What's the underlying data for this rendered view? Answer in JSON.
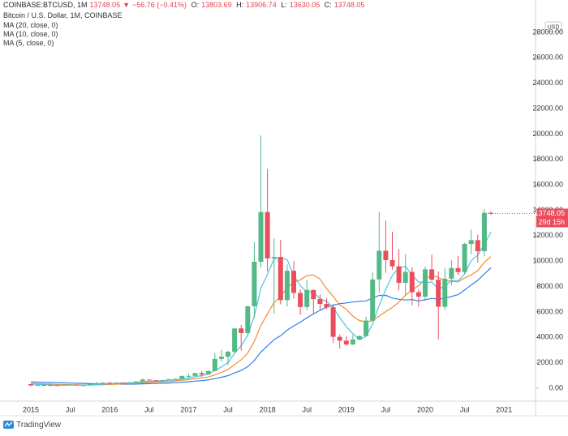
{
  "chart_data": {
    "type": "candlestick",
    "symbol": "COINBASE:BTCUSD, 1M",
    "direction": "▼",
    "change": "−56.76 (−0.41%)",
    "ohlc_labels": [
      "O:",
      "H:",
      "L:",
      "C:"
    ],
    "title": "Bitcoin / U.S. Dollar, 1M, COINBASE",
    "currency": "USD",
    "countdown": "29d 15h",
    "brand": "TradingView",
    "up_color": "#53b987",
    "down_color": "#eb4d5c",
    "categories": [
      "2015",
      null,
      null,
      null,
      null,
      null,
      "Jul",
      null,
      null,
      null,
      null,
      null,
      "2016",
      null,
      null,
      null,
      null,
      null,
      "Jul",
      null,
      null,
      null,
      null,
      null,
      "2017",
      null,
      null,
      null,
      null,
      null,
      "Jul",
      null,
      null,
      null,
      null,
      null,
      "2018",
      null,
      null,
      null,
      null,
      null,
      "Jul",
      null,
      null,
      null,
      null,
      null,
      "2019",
      null,
      null,
      null,
      null,
      null,
      "Jul",
      null,
      null,
      null,
      null,
      null,
      "2020",
      null,
      null,
      null,
      null,
      null,
      "Jul",
      null,
      null,
      null,
      null,
      null,
      "2021"
    ],
    "open": [
      320,
      217,
      254,
      244,
      236,
      230,
      263,
      284,
      230,
      236,
      314,
      377,
      430,
      369,
      437,
      416,
      448,
      531,
      673,
      624,
      573,
      608,
      700,
      742,
      964,
      970,
      1190,
      1080,
      1350,
      2300,
      2480,
      2870,
      4700,
      4340,
      6450,
      9950,
      13860,
      10220,
      10330,
      6930,
      9240,
      7500,
      6390,
      7730,
      7010,
      6630,
      6370,
      4040,
      3740,
      3440,
      3830,
      4100,
      5320,
      8560,
      10820,
      10080,
      9590,
      8290,
      9150,
      7550,
      7200,
      9350,
      8540,
      6410,
      8620,
      9450,
      9140,
      11350,
      11650,
      10780,
      13803.69,
      null,
      null
    ],
    "high": [
      320,
      265,
      300,
      262,
      247,
      268,
      316,
      285,
      247,
      335,
      502,
      465,
      462,
      447,
      440,
      470,
      550,
      780,
      700,
      628,
      630,
      740,
      755,
      980,
      1150,
      1200,
      1350,
      1400,
      2790,
      3000,
      2950,
      4740,
      4980,
      6470,
      11500,
      19890,
      17250,
      11790,
      11680,
      9760,
      9990,
      7770,
      8500,
      7750,
      7410,
      7090,
      6600,
      4240,
      4100,
      4200,
      4150,
      5620,
      9100,
      13880,
      13200,
      12320,
      10950,
      10540,
      9520,
      7750,
      9580,
      10500,
      9190,
      9470,
      10080,
      10400,
      11450,
      12480,
      12080,
      14100,
      13906.74,
      null,
      null
    ],
    "low": [
      170,
      212,
      240,
      214,
      226,
      220,
      253,
      199,
      225,
      236,
      300,
      349,
      350,
      365,
      393,
      412,
      443,
      520,
      610,
      515,
      568,
      605,
      690,
      740,
      750,
      950,
      890,
      1070,
      1350,
      2100,
      1830,
      2700,
      2950,
      4110,
      5500,
      9500,
      9200,
      5870,
      6600,
      6430,
      7050,
      5780,
      6110,
      5880,
      6100,
      6200,
      3550,
      3120,
      3350,
      3400,
      3770,
      4090,
      5320,
      7500,
      9080,
      9330,
      7700,
      7300,
      6520,
      6410,
      6870,
      8450,
      3850,
      6160,
      8100,
      8900,
      8970,
      10530,
      9880,
      10380,
      13630.05,
      null,
      null
    ],
    "close": [
      217,
      254,
      244,
      236,
      230,
      263,
      284,
      230,
      236,
      314,
      377,
      430,
      369,
      437,
      416,
      448,
      531,
      673,
      624,
      573,
      608,
      700,
      742,
      964,
      970,
      1190,
      1080,
      1350,
      2300,
      2480,
      2870,
      4700,
      4340,
      6450,
      9950,
      13860,
      10220,
      10330,
      6930,
      9240,
      7500,
      6390,
      7730,
      7010,
      6630,
      6370,
      4040,
      3740,
      3440,
      3830,
      4100,
      5320,
      8560,
      10820,
      10080,
      9590,
      8290,
      9150,
      7550,
      7200,
      9350,
      8540,
      6410,
      8620,
      9450,
      9140,
      11350,
      11650,
      10780,
      13800,
      13748.05,
      null,
      null
    ],
    "series": [
      {
        "name": "MA (20, close, 0)",
        "color": "#2f7ef0",
        "values": [
          495,
          480,
          465,
          450,
          435,
          420,
          405,
          390,
          375,
          360,
          350,
          340,
          330,
          325,
          322,
          319,
          328,
          344,
          357,
          369,
          389,
          411,
          436,
          472,
          509,
          556,
          596,
          652,
          755,
          863,
          988,
          1201,
          1400,
          1700,
          2177,
          2848,
          3332,
          3815,
          4130,
          4564,
          4908,
          5193,
          5542,
          5845,
          6128,
          6387,
          6535,
          6654,
          6711,
          6779,
          6840,
          6871,
          7082,
          7301,
          7307,
          7094,
          6997,
          6938,
          6969,
          6867,
          6960,
          7067,
          7001,
          7082,
          7223,
          7361,
          7727,
          8122,
          8489,
          8988,
          9470,
          null,
          null
        ]
      },
      {
        "name": "MA (10, close, 0)",
        "color": "#f48b2c",
        "values": [
          380,
          360,
          340,
          320,
          300,
          285,
          275,
          265,
          255,
          251,
          267,
          284,
          297,
          317,
          336,
          354,
          379,
          423,
          462,
          488,
          511,
          538,
          575,
          628,
          683,
          758,
          812,
          880,
          1048,
          1238,
          1465,
          1865,
          2224,
          2773,
          3671,
          4938,
          5852,
          6750,
          7213,
          7889,
          8352,
          8521,
          8860,
          8916,
          8584,
          7835,
          7217,
          6558,
          6209,
          5668,
          5328,
          5221,
          5304,
          5685,
          6030,
          6352,
          6777,
          7318,
          7729,
          8066,
          8591,
          8913,
          8698,
          8478,
          8415,
          8370,
          8676,
          8926,
          9249,
          9909,
          10349,
          null,
          null
        ]
      },
      {
        "name": "MA (5, close, 0)",
        "color": "#4cc3e6",
        "values": [
          328,
          301,
          283,
          254,
          236,
          245,
          251,
          249,
          249,
          265,
          288,
          317,
          345,
          385,
          406,
          420,
          440,
          501,
          538,
          570,
          602,
          636,
          649,
          717,
          797,
          913,
          989,
          1111,
          1378,
          1680,
          2016,
          2740,
          3338,
          4168,
          5662,
          7860,
          8964,
          10162,
          10258,
          10116,
          8844,
          8078,
          7558,
          7574,
          7052,
          6826,
          6356,
          5558,
          4844,
          4284,
          3830,
          4086,
          5050,
          6526,
          7776,
          8874,
          9468,
          9586,
          8932,
          8356,
          8308,
          8358,
          7810,
          8024,
          8474,
          8432,
          8994,
          10042,
          10474,
          11344,
          12266,
          null,
          null
        ]
      }
    ],
    "ylim": [
      -1020,
      30550
    ],
    "yticks": [
      {
        "value": 0,
        "label": "0.00"
      },
      {
        "value": 2000,
        "label": "2000.00"
      },
      {
        "value": 4000,
        "label": "4000.00"
      },
      {
        "value": 6000,
        "label": "6000.00"
      },
      {
        "value": 8000,
        "label": "8000.00"
      },
      {
        "value": 10000,
        "label": "10000.00"
      },
      {
        "value": 12000,
        "label": "12000.00"
      },
      {
        "value": 14000,
        "label": "14000.00"
      },
      {
        "value": 16000,
        "label": "16000.00"
      },
      {
        "value": 18000,
        "label": "18000.00"
      },
      {
        "value": 20000,
        "label": "20000.00"
      },
      {
        "value": 22000,
        "label": "22000.00"
      },
      {
        "value": 24000,
        "label": "24000.00"
      },
      {
        "value": 26000,
        "label": "26000.00"
      },
      {
        "value": 28000,
        "label": "28000.00"
      }
    ],
    "grid": false
  }
}
